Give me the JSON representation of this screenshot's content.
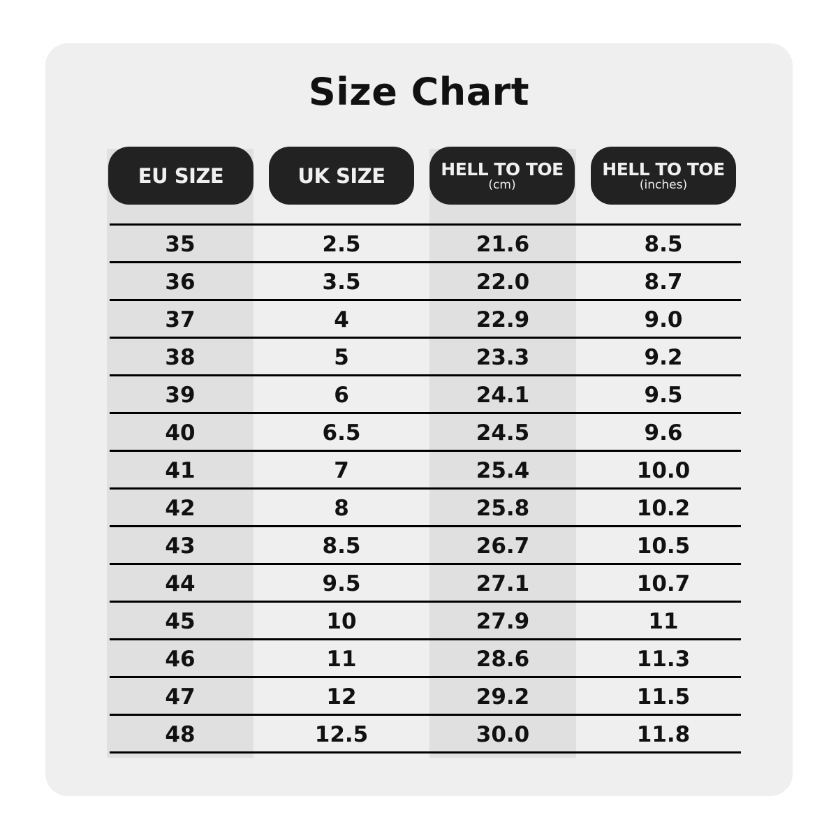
{
  "title": "Size Chart",
  "colors": {
    "card_bg": "#efefef",
    "shade": "#e0e0e0",
    "header_bg": "#222222",
    "header_text": "#f0f0f0"
  },
  "headers": [
    {
      "main": "EU SIZE",
      "sub": ""
    },
    {
      "main": "UK SIZE",
      "sub": ""
    },
    {
      "main": "HELL TO TOE",
      "sub": "(cm)"
    },
    {
      "main": "HELL TO TOE",
      "sub": "(inches)"
    }
  ],
  "rows": [
    [
      "35",
      "2.5",
      "21.6",
      "8.5"
    ],
    [
      "36",
      "3.5",
      "22.0",
      "8.7"
    ],
    [
      "37",
      "4",
      "22.9",
      "9.0"
    ],
    [
      "38",
      "5",
      "23.3",
      "9.2"
    ],
    [
      "39",
      "6",
      "24.1",
      "9.5"
    ],
    [
      "40",
      "6.5",
      "24.5",
      "9.6"
    ],
    [
      "41",
      "7",
      "25.4",
      "10.0"
    ],
    [
      "42",
      "8",
      "25.8",
      "10.2"
    ],
    [
      "43",
      "8.5",
      "26.7",
      "10.5"
    ],
    [
      "44",
      "9.5",
      "27.1",
      "10.7"
    ],
    [
      "45",
      "10",
      "27.9",
      "11"
    ],
    [
      "46",
      "11",
      "28.6",
      "11.3"
    ],
    [
      "47",
      "12",
      "29.2",
      "11.5"
    ],
    [
      "48",
      "12.5",
      "30.0",
      "11.8"
    ]
  ]
}
